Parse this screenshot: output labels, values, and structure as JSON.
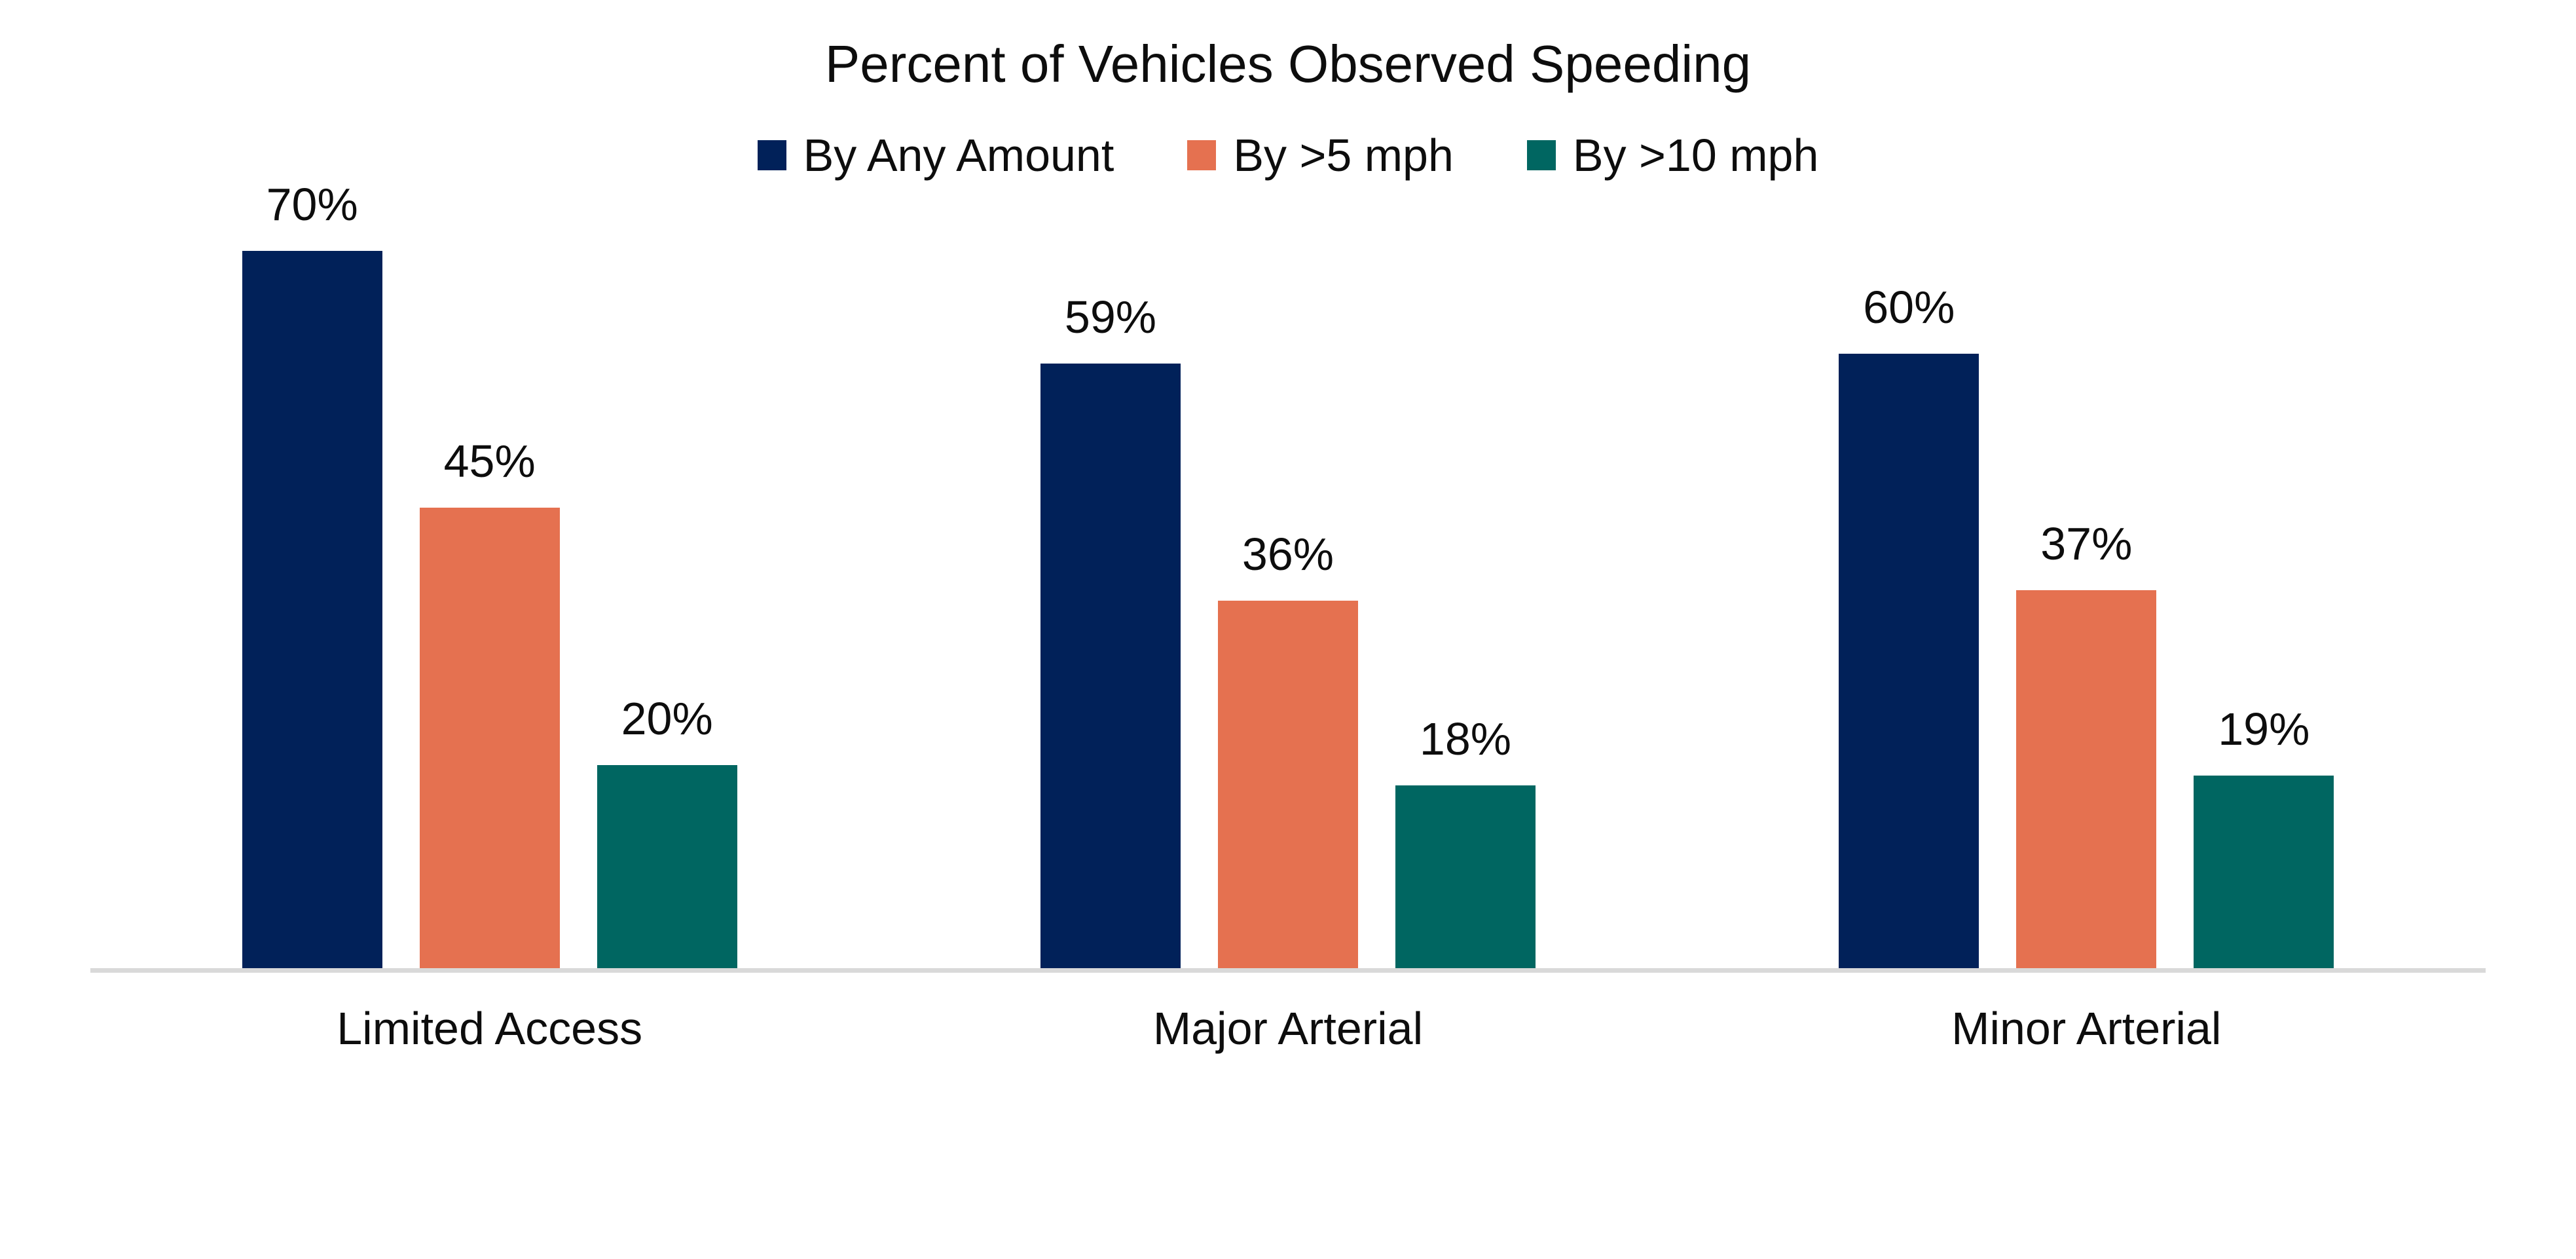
{
  "title": "Percent of Vehicles Observed Speeding",
  "chart_data": {
    "type": "bar",
    "title": "Percent of Vehicles Observed Speeding",
    "categories": [
      "Limited Access",
      "Major Arterial",
      "Minor Arterial"
    ],
    "series": [
      {
        "name": "By Any Amount",
        "color": "#012159",
        "values": [
          70,
          59,
          60
        ]
      },
      {
        "name": "By >5 mph",
        "color": "#E57150",
        "values": [
          45,
          36,
          37
        ]
      },
      {
        "name": "By >10 mph",
        "color": "#006661",
        "values": [
          20,
          18,
          19
        ]
      }
    ],
    "value_label_suffix": "%",
    "xlabel": "",
    "ylabel": "",
    "ylim": [
      0,
      75
    ],
    "grid": false,
    "legend_position": "top",
    "axis_line_color": "#D9D9D9"
  }
}
